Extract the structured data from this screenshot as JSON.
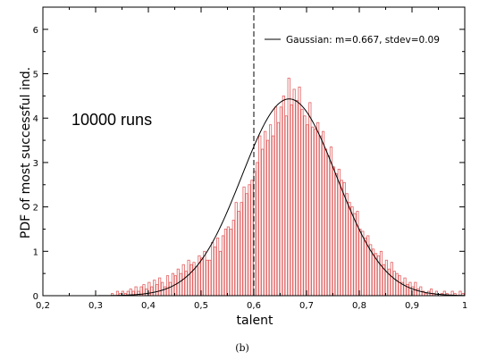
{
  "chart_data": {
    "type": "bar",
    "xlabel": "talent",
    "ylabel": "PDF of most successful ind.",
    "xlim": [
      0.2,
      1.0
    ],
    "ylim": [
      0,
      6.5
    ],
    "xticks": [
      "0,2",
      "0,3",
      "0,4",
      "0,5",
      "0,6",
      "0,7",
      "0,8",
      "0,9",
      "1"
    ],
    "yticks": [
      "0",
      "1",
      "2",
      "3",
      "4",
      "5",
      "6"
    ],
    "annotation": "10000 runs",
    "caption": "(b)",
    "vline_x": 0.6,
    "gaussian": {
      "mean": 0.667,
      "stdev": 0.09,
      "legend": "Gaussian: m=0.667, stdev=0.09"
    },
    "bin_width": 0.005,
    "bars": [
      [
        0.332,
        0.05
      ],
      [
        0.337,
        0.0
      ],
      [
        0.342,
        0.1
      ],
      [
        0.347,
        0.05
      ],
      [
        0.352,
        0.1
      ],
      [
        0.357,
        0.05
      ],
      [
        0.362,
        0.1
      ],
      [
        0.367,
        0.15
      ],
      [
        0.372,
        0.1
      ],
      [
        0.377,
        0.2
      ],
      [
        0.382,
        0.1
      ],
      [
        0.387,
        0.2
      ],
      [
        0.392,
        0.25
      ],
      [
        0.397,
        0.15
      ],
      [
        0.402,
        0.3
      ],
      [
        0.407,
        0.2
      ],
      [
        0.412,
        0.35
      ],
      [
        0.417,
        0.25
      ],
      [
        0.422,
        0.4
      ],
      [
        0.427,
        0.3
      ],
      [
        0.432,
        0.2
      ],
      [
        0.437,
        0.45
      ],
      [
        0.442,
        0.3
      ],
      [
        0.447,
        0.5
      ],
      [
        0.452,
        0.45
      ],
      [
        0.457,
        0.6
      ],
      [
        0.462,
        0.5
      ],
      [
        0.467,
        0.7
      ],
      [
        0.472,
        0.55
      ],
      [
        0.477,
        0.8
      ],
      [
        0.482,
        0.7
      ],
      [
        0.487,
        0.75
      ],
      [
        0.492,
        0.65
      ],
      [
        0.497,
        0.9
      ],
      [
        0.502,
        0.85
      ],
      [
        0.507,
        1.0
      ],
      [
        0.512,
        0.8
      ],
      [
        0.517,
        0.8
      ],
      [
        0.522,
        1.2
      ],
      [
        0.527,
        1.1
      ],
      [
        0.532,
        1.3
      ],
      [
        0.537,
        1.0
      ],
      [
        0.542,
        1.35
      ],
      [
        0.547,
        1.5
      ],
      [
        0.552,
        1.55
      ],
      [
        0.557,
        1.5
      ],
      [
        0.562,
        1.7
      ],
      [
        0.567,
        2.1
      ],
      [
        0.572,
        1.9
      ],
      [
        0.577,
        2.1
      ],
      [
        0.582,
        2.45
      ],
      [
        0.587,
        2.3
      ],
      [
        0.592,
        2.5
      ],
      [
        0.597,
        2.6
      ],
      [
        0.602,
        2.8
      ],
      [
        0.607,
        3.0
      ],
      [
        0.612,
        3.6
      ],
      [
        0.617,
        3.3
      ],
      [
        0.622,
        3.7
      ],
      [
        0.627,
        3.5
      ],
      [
        0.632,
        3.85
      ],
      [
        0.637,
        3.6
      ],
      [
        0.642,
        4.25
      ],
      [
        0.647,
        3.9
      ],
      [
        0.652,
        4.25
      ],
      [
        0.657,
        4.5
      ],
      [
        0.662,
        4.05
      ],
      [
        0.667,
        4.9
      ],
      [
        0.672,
        4.3
      ],
      [
        0.677,
        4.65
      ],
      [
        0.682,
        4.4
      ],
      [
        0.687,
        4.7
      ],
      [
        0.692,
        4.2
      ],
      [
        0.697,
        4.05
      ],
      [
        0.702,
        3.85
      ],
      [
        0.707,
        4.35
      ],
      [
        0.712,
        3.8
      ],
      [
        0.717,
        3.75
      ],
      [
        0.722,
        3.9
      ],
      [
        0.727,
        3.6
      ],
      [
        0.732,
        3.7
      ],
      [
        0.737,
        3.3
      ],
      [
        0.742,
        3.15
      ],
      [
        0.747,
        3.35
      ],
      [
        0.752,
        2.9
      ],
      [
        0.757,
        2.75
      ],
      [
        0.762,
        2.85
      ],
      [
        0.767,
        2.6
      ],
      [
        0.772,
        2.55
      ],
      [
        0.777,
        2.3
      ],
      [
        0.782,
        2.1
      ],
      [
        0.787,
        2.0
      ],
      [
        0.792,
        1.85
      ],
      [
        0.797,
        1.9
      ],
      [
        0.802,
        1.5
      ],
      [
        0.807,
        1.45
      ],
      [
        0.812,
        1.3
      ],
      [
        0.817,
        1.35
      ],
      [
        0.822,
        1.15
      ],
      [
        0.827,
        1.05
      ],
      [
        0.832,
        0.95
      ],
      [
        0.837,
        0.9
      ],
      [
        0.842,
        1.0
      ],
      [
        0.847,
        0.7
      ],
      [
        0.852,
        0.8
      ],
      [
        0.857,
        0.6
      ],
      [
        0.862,
        0.75
      ],
      [
        0.867,
        0.55
      ],
      [
        0.872,
        0.5
      ],
      [
        0.877,
        0.45
      ],
      [
        0.882,
        0.3
      ],
      [
        0.887,
        0.4
      ],
      [
        0.892,
        0.25
      ],
      [
        0.897,
        0.3
      ],
      [
        0.902,
        0.2
      ],
      [
        0.907,
        0.3
      ],
      [
        0.912,
        0.15
      ],
      [
        0.917,
        0.2
      ],
      [
        0.922,
        0.1
      ],
      [
        0.927,
        0.05
      ],
      [
        0.932,
        0.1
      ],
      [
        0.937,
        0.15
      ],
      [
        0.942,
        0.05
      ],
      [
        0.947,
        0.1
      ],
      [
        0.952,
        0.0
      ],
      [
        0.957,
        0.05
      ],
      [
        0.962,
        0.1
      ],
      [
        0.967,
        0.05
      ],
      [
        0.972,
        0.0
      ],
      [
        0.977,
        0.1
      ],
      [
        0.982,
        0.05
      ],
      [
        0.987,
        0.0
      ],
      [
        0.992,
        0.1
      ],
      [
        0.997,
        0.05
      ]
    ]
  }
}
